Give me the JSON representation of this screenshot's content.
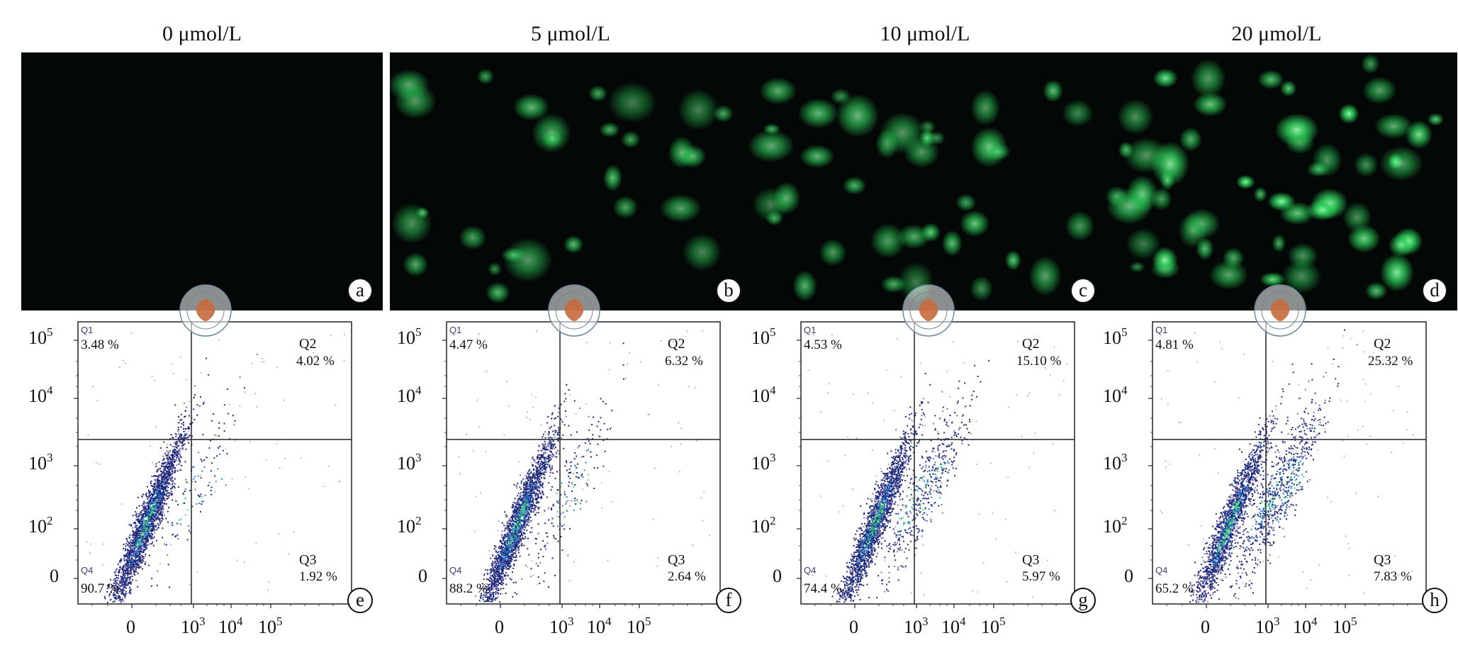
{
  "panels": [
    {
      "concentration": "0 μmol/L",
      "micro_letter": "a",
      "flow_letter": "e",
      "fluorescence_level": 0.0,
      "q1_label": "Q1",
      "q1_pct": "3.48 %",
      "q2_label": "Q2",
      "q2_pct": "4.02 %",
      "q3_label": "Q3",
      "q3_pct": "1.92 %",
      "q4_label": "Q4",
      "q4_pct": "90.7 %"
    },
    {
      "concentration": "5 μmol/L",
      "micro_letter": "b",
      "flow_letter": "f",
      "fluorescence_level": 0.45,
      "q1_label": "Q1",
      "q1_pct": "4.47 %",
      "q2_label": "Q2",
      "q2_pct": "6.32 %",
      "q3_label": "Q3",
      "q3_pct": "2.64 %",
      "q4_label": "Q4",
      "q4_pct": "88.2 %"
    },
    {
      "concentration": "10 μmol/L",
      "micro_letter": "c",
      "flow_letter": "g",
      "fluorescence_level": 0.6,
      "q1_label": "Q1",
      "q1_pct": "4.53 %",
      "q2_label": "Q2",
      "q2_pct": "15.10 %",
      "q3_label": "Q3",
      "q3_pct": "5.97 %",
      "q4_label": "Q4",
      "q4_pct": "74.4 %"
    },
    {
      "concentration": "20 μmol/L",
      "micro_letter": "d",
      "flow_letter": "h",
      "fluorescence_level": 0.9,
      "q1_label": "Q1",
      "q1_pct": "4.81 %",
      "q2_label": "Q2",
      "q2_pct": "25.32 %",
      "q3_label": "Q3",
      "q3_pct": "7.83 %",
      "q4_label": "Q4",
      "q4_pct": "65.2 %"
    }
  ],
  "y_ticks": [
    {
      "base": "10",
      "exp": "5"
    },
    {
      "base": "10",
      "exp": "4"
    },
    {
      "base": "10",
      "exp": "3"
    },
    {
      "base": "10",
      "exp": "2"
    },
    {
      "base": "0",
      "exp": ""
    }
  ],
  "x_ticks": [
    {
      "base": "0",
      "exp": ""
    },
    {
      "base": "10",
      "exp": "3"
    },
    {
      "base": "10",
      "exp": "4"
    },
    {
      "base": "10",
      "exp": "5"
    }
  ],
  "colors": {
    "micro_background": "#030806",
    "cell_green": "#2fd45c",
    "scatter_dark": "#1b2a7a",
    "scatter_mid": "#2f7fd0",
    "scatter_hot": "#40e070",
    "scatter_sparse": "#8a6aa8"
  }
}
